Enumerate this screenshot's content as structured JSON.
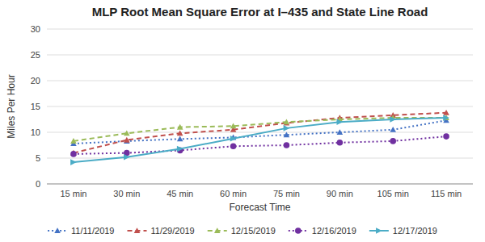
{
  "chart_data": {
    "type": "line",
    "title": "MLP Root Mean Square Error at I–435 and State Line Road",
    "xlabel": "Forecast Time",
    "ylabel": "Miles Per Hour",
    "categories": [
      "15 min",
      "30 min",
      "45 min",
      "60 min",
      "75 min",
      "90 min",
      "105 min",
      "115 min"
    ],
    "series": [
      {
        "name": "11/11/2019",
        "color": "#4472C4",
        "line_style": "dotted",
        "marker": "triangle-up",
        "values": [
          7.8,
          8.3,
          8.7,
          9.0,
          9.5,
          10.0,
          10.5,
          12.3
        ]
      },
      {
        "name": "11/29/2019",
        "color": "#C0504D",
        "line_style": "dashed",
        "marker": "triangle-up",
        "values": [
          6.0,
          8.5,
          9.8,
          10.5,
          11.8,
          12.8,
          13.3,
          13.8
        ]
      },
      {
        "name": "12/15/2019",
        "color": "#9BBB59",
        "line_style": "dashed",
        "marker": "triangle-up",
        "values": [
          8.3,
          9.8,
          11.0,
          11.2,
          12.0,
          12.5,
          12.8,
          12.8
        ]
      },
      {
        "name": "12/16/2019",
        "color": "#7030A0",
        "line_style": "dotted",
        "marker": "circle",
        "values": [
          5.8,
          6.0,
          6.5,
          7.3,
          7.5,
          8.0,
          8.3,
          9.2
        ]
      },
      {
        "name": "12/17/2019",
        "color": "#4BACC6",
        "line_style": "solid",
        "marker": "triangle-right",
        "values": [
          4.2,
          5.2,
          6.8,
          8.8,
          10.8,
          12.0,
          12.5,
          12.8
        ]
      }
    ],
    "ylim": [
      0,
      30
    ],
    "yticks": [
      0,
      5,
      10,
      15,
      20,
      25,
      30
    ],
    "grid": true,
    "legend": "bottom"
  }
}
